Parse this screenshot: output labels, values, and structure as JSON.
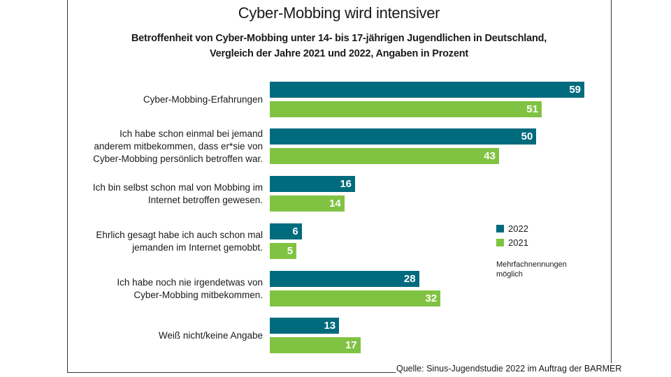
{
  "chart_data": {
    "type": "bar",
    "orientation": "horizontal",
    "title": "Cyber-Mobbing wird intensiver",
    "subtitle_lines": [
      "Betroffenheit von Cyber-Mobbing unter 14- bis 17-jährigen Jugendlichen in Deutschland,",
      "Vergleich der Jahre 2021 und 2022, Angaben in Prozent"
    ],
    "categories": [
      [
        "Cyber-Mobbing-Erfahrungen"
      ],
      [
        "Ich habe schon einmal bei jemand",
        "anderem mitbekommen, dass er*sie von",
        "Cyber-Mobbing persönlich betroffen war."
      ],
      [
        "Ich bin selbst schon mal von Mobbing im",
        "Internet betroffen gewesen."
      ],
      [
        "Ehrlich gesagt habe ich auch schon mal",
        "jemanden im Internet gemobbt."
      ],
      [
        "Ich habe noch nie irgendetwas von",
        "Cyber-Mobbing mitbekommen."
      ],
      [
        "Weiß nicht/keine Angabe"
      ]
    ],
    "series": [
      {
        "name": "2022",
        "color": "#006B7D",
        "values": [
          59,
          50,
          16,
          6,
          28,
          13
        ]
      },
      {
        "name": "2021",
        "color": "#80C342",
        "values": [
          51,
          43,
          14,
          5,
          32,
          17
        ]
      }
    ],
    "xlabel": "",
    "ylabel": "",
    "xlim": [
      0,
      59
    ],
    "grid": false,
    "legend_position": "right",
    "data_labels": true,
    "note_lines": [
      "Mehrfachnennungen",
      "möglich"
    ],
    "source": "Quelle: Sinus-Jugendstudie 2022 im Auftrag der BARMER"
  }
}
